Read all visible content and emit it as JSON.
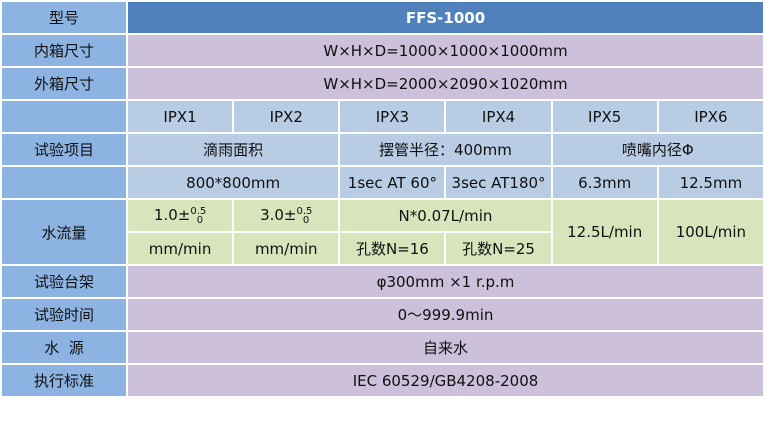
{
  "labels": {
    "model": "型号",
    "inner": "内箱尺寸",
    "outer": "外箱尺寸",
    "test_item": "试验项目",
    "flow": "水流量",
    "rack": "试验台架",
    "time": "试验时间",
    "water": "水  源",
    "standard": "执行标准"
  },
  "model": "FFS-1000",
  "inner_size": "W×H×D=1000×1000×1000mm",
  "outer_size": "W×H×D=2000×2090×1020mm",
  "ipx": [
    "IPX1",
    "IPX2",
    "IPX3",
    "IPX4",
    "IPX5",
    "IPX6"
  ],
  "test_items": [
    "滴雨面积",
    "摆管半径：400mm",
    "喷嘴内径Φ"
  ],
  "test_values": [
    "800*800mm",
    "1sec AT 60°",
    "3sec AT180°",
    "6.3mm",
    "12.5mm"
  ],
  "flow": {
    "ipx1_base": "1.0±",
    "ipx2_base": "3.0±",
    "sup": "0.5",
    "sub": "0",
    "ipx34": "N*0.07L/min",
    "unit1": "mm/min",
    "unit2": "mm/min",
    "holes16": "孔数N=16",
    "holes25": "孔数N=25",
    "ipx5": "12.5L/min",
    "ipx6": "100L/min"
  },
  "rack": "φ300mm ×1 r.p.m",
  "time": "0～999.9min",
  "water": "自来水",
  "standard": "IEC 60529/GB4208-2008"
}
